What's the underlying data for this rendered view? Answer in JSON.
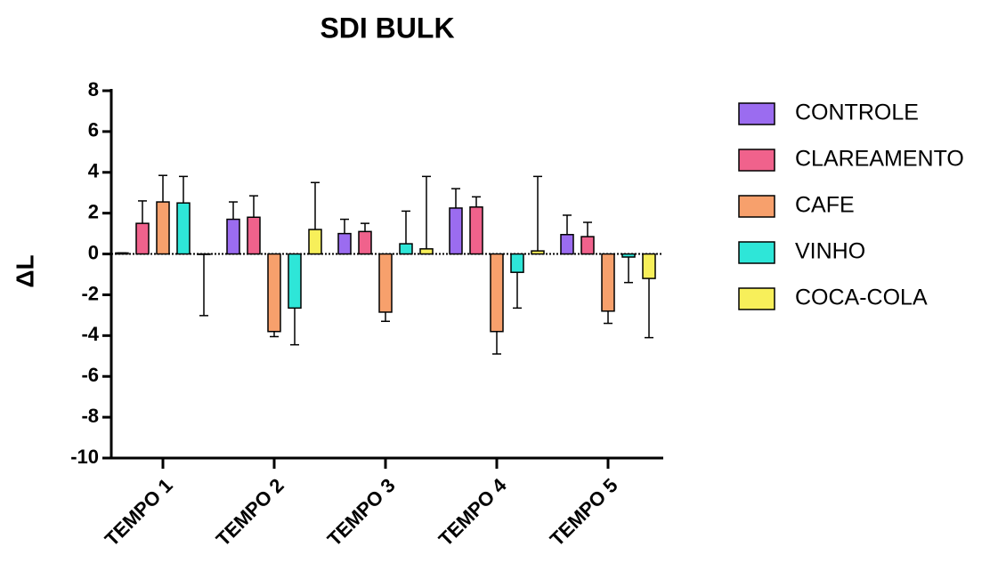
{
  "chart_data": {
    "type": "bar",
    "title": "SDI BULK",
    "y_label": "ΔL",
    "categories": [
      "TEMPO 1",
      "TEMPO 2",
      "TEMPO 3",
      "TEMPO 4",
      "TEMPO 5"
    ],
    "series": [
      {
        "name": "CONTROLE",
        "color": "#9b6cf0",
        "values": [
          0.05,
          1.7,
          1.0,
          2.25,
          0.95
        ],
        "errors": [
          0,
          0.85,
          0.7,
          0.95,
          0.95
        ]
      },
      {
        "name": "CLAREAMENTO",
        "color": "#f0628c",
        "values": [
          1.5,
          1.8,
          1.1,
          2.3,
          0.85
        ],
        "errors": [
          1.1,
          1.05,
          0.4,
          0.5,
          0.7
        ]
      },
      {
        "name": "CAFE",
        "color": "#f7a06c",
        "values": [
          2.55,
          -3.8,
          -2.85,
          -3.8,
          -2.8
        ],
        "errors": [
          1.3,
          0.25,
          0.45,
          1.1,
          0.6
        ]
      },
      {
        "name": "VINHO",
        "color": "#2ee6d8",
        "values": [
          2.5,
          -2.65,
          0.5,
          -0.9,
          -0.15
        ],
        "errors": [
          1.3,
          1.8,
          1.6,
          1.75,
          1.25
        ]
      },
      {
        "name": "COCA-COLA",
        "color": "#f7ef5a",
        "values": [
          -0.02,
          1.2,
          0.25,
          0.15,
          -1.2
        ],
        "errors": [
          3.0,
          2.3,
          3.55,
          3.65,
          2.9
        ]
      }
    ],
    "ylim": [
      -10,
      8
    ],
    "yticks": [
      -10,
      -8,
      -6,
      -4,
      -2,
      0,
      2,
      4,
      6,
      8
    ],
    "grid": false,
    "legend": "right"
  }
}
